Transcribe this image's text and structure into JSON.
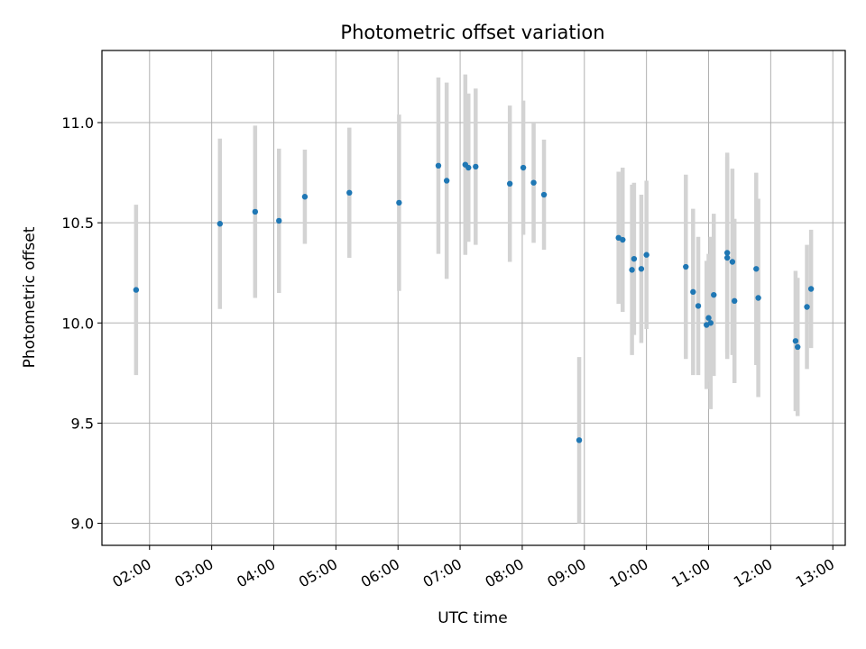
{
  "chart_data": {
    "type": "scatter",
    "title": "Photometric offset variation",
    "xlabel": "UTC time",
    "ylabel": "Photometric offset",
    "x_unit": "hours UTC",
    "xlim": [
      "01:14",
      "13:12"
    ],
    "ylim": [
      8.89,
      11.36
    ],
    "x_ticks": [
      "02:00",
      "03:00",
      "04:00",
      "05:00",
      "06:00",
      "07:00",
      "08:00",
      "09:00",
      "10:00",
      "11:00",
      "12:00",
      "13:00"
    ],
    "y_ticks": [
      "9.0",
      "9.5",
      "10.0",
      "10.5",
      "11.0"
    ],
    "grid": true,
    "point_color": "#1f77b4",
    "errorbar_color": "#d3d3d3",
    "points": [
      {
        "x": "01:47",
        "y": 10.165,
        "err": 0.425
      },
      {
        "x": "03:08",
        "y": 10.495,
        "err": 0.425
      },
      {
        "x": "03:42",
        "y": 10.555,
        "err": 0.43
      },
      {
        "x": "04:05",
        "y": 10.51,
        "err": 0.36
      },
      {
        "x": "04:30",
        "y": 10.63,
        "err": 0.235
      },
      {
        "x": "05:13",
        "y": 10.65,
        "err": 0.325
      },
      {
        "x": "06:01",
        "y": 10.6,
        "err": 0.44
      },
      {
        "x": "06:39",
        "y": 10.785,
        "err": 0.44
      },
      {
        "x": "06:47",
        "y": 10.71,
        "err": 0.49
      },
      {
        "x": "07:05",
        "y": 10.79,
        "err": 0.45
      },
      {
        "x": "07:08",
        "y": 10.775,
        "err": 0.37
      },
      {
        "x": "07:15",
        "y": 10.78,
        "err": 0.39
      },
      {
        "x": "07:48",
        "y": 10.695,
        "err": 0.39
      },
      {
        "x": "08:01",
        "y": 10.775,
        "err": 0.335
      },
      {
        "x": "08:11",
        "y": 10.7,
        "err": 0.3
      },
      {
        "x": "08:21",
        "y": 10.64,
        "err": 0.275
      },
      {
        "x": "08:55",
        "y": 9.415,
        "err": 0.415
      },
      {
        "x": "09:33",
        "y": 10.425,
        "err": 0.33
      },
      {
        "x": "09:37",
        "y": 10.415,
        "err": 0.36
      },
      {
        "x": "09:46",
        "y": 10.265,
        "err": 0.425
      },
      {
        "x": "09:48",
        "y": 10.32,
        "err": 0.38
      },
      {
        "x": "09:55",
        "y": 10.27,
        "err": 0.37
      },
      {
        "x": "10:00",
        "y": 10.34,
        "err": 0.37
      },
      {
        "x": "10:38",
        "y": 10.28,
        "err": 0.46
      },
      {
        "x": "10:45",
        "y": 10.155,
        "err": 0.415
      },
      {
        "x": "10:50",
        "y": 10.085,
        "err": 0.345
      },
      {
        "x": "10:58",
        "y": 9.99,
        "err": 0.32
      },
      {
        "x": "11:00",
        "y": 10.025,
        "err": 0.32
      },
      {
        "x": "11:02",
        "y": 10.0,
        "err": 0.43
      },
      {
        "x": "11:05",
        "y": 10.14,
        "err": 0.405
      },
      {
        "x": "11:18",
        "y": 10.35,
        "err": 0.5
      },
      {
        "x": "11:18",
        "y": 10.325,
        "err": 0.505
      },
      {
        "x": "11:23",
        "y": 10.305,
        "err": 0.465
      },
      {
        "x": "11:25",
        "y": 10.11,
        "err": 0.41
      },
      {
        "x": "11:46",
        "y": 10.27,
        "err": 0.48
      },
      {
        "x": "11:48",
        "y": 10.125,
        "err": 0.495
      },
      {
        "x": "12:24",
        "y": 9.91,
        "err": 0.35
      },
      {
        "x": "12:26",
        "y": 9.88,
        "err": 0.345
      },
      {
        "x": "12:35",
        "y": 10.08,
        "err": 0.31
      },
      {
        "x": "12:39",
        "y": 10.17,
        "err": 0.295
      }
    ]
  }
}
